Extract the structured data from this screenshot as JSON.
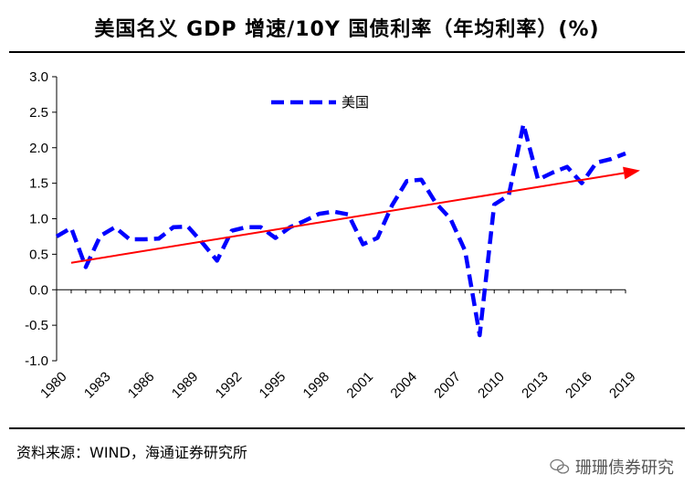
{
  "title": "美国名义 GDP 增速/10Y 国债利率（年均利率）(%)",
  "source": "资料来源：WIND，海通证券研究所",
  "watermark": "珊珊债券研究",
  "chart_data": {
    "type": "line",
    "ylim": [
      -1.0,
      3.0
    ],
    "yticks": [
      "3.0",
      "2.5",
      "2.0",
      "1.5",
      "1.0",
      "0.5",
      "0.0",
      "-0.5",
      "-1.0"
    ],
    "ytick_values": [
      3.0,
      2.5,
      2.0,
      1.5,
      1.0,
      0.5,
      0.0,
      -0.5,
      -1.0
    ],
    "xticks": [
      "1980",
      "1983",
      "1986",
      "1989",
      "1992",
      "1995",
      "1998",
      "2001",
      "2004",
      "2007",
      "2010",
      "2013",
      "2016",
      "2019"
    ],
    "legend": {
      "position": "top-left",
      "entries": [
        "美国"
      ]
    },
    "colors": {
      "series": "#0000ff",
      "trend": "#ff0000"
    },
    "series": [
      {
        "name": "美国",
        "style": "dashed",
        "x": [
          1980,
          1981,
          1982,
          1983,
          1984,
          1985,
          1986,
          1987,
          1988,
          1989,
          1990,
          1991,
          1992,
          1993,
          1994,
          1995,
          1996,
          1997,
          1998,
          1999,
          2000,
          2001,
          2002,
          2003,
          2004,
          2005,
          2006,
          2007,
          2008,
          2009,
          2010,
          2011,
          2012,
          2013,
          2014,
          2015,
          2016,
          2017,
          2018,
          2019
        ],
        "values": [
          0.75,
          0.87,
          0.32,
          0.76,
          0.88,
          0.71,
          0.71,
          0.72,
          0.88,
          0.89,
          0.66,
          0.41,
          0.83,
          0.88,
          0.88,
          0.73,
          0.88,
          0.97,
          1.07,
          1.1,
          1.06,
          0.64,
          0.73,
          1.19,
          1.53,
          1.55,
          1.22,
          1.0,
          0.55,
          -0.64,
          1.2,
          1.33,
          2.33,
          1.55,
          1.65,
          1.73,
          1.5,
          1.79,
          1.84,
          1.92
        ]
      },
      {
        "name": "",
        "style": "trend-arrow",
        "x": [
          1981,
          2020
        ],
        "values": [
          0.38,
          1.68
        ]
      }
    ]
  }
}
